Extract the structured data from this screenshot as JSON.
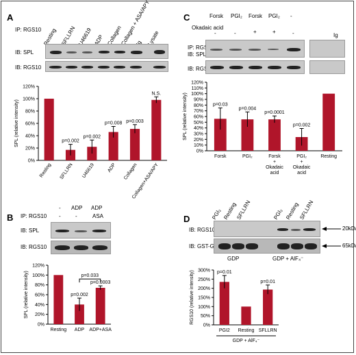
{
  "colors": {
    "bar": "#b0152a",
    "axis": "#000",
    "blot_bg": "#c9c9c9",
    "band": "#222"
  },
  "panels": {
    "A": {
      "label": "A",
      "ip": "IP: RGS10",
      "ib_top": "IB: SPL",
      "ib_bottom": "IB: RGS10",
      "lanes": [
        "Resting",
        "SFLLRN",
        "U46619",
        "ADP",
        "Collagen",
        "Collagen + ASA/APY",
        "Ig",
        "Lysate"
      ]
    },
    "B": {
      "label": "B",
      "ip": "IP: RGS10",
      "ib_top": "IB: SPL",
      "ib_bottom": "IB: RGS10",
      "row1": [
        "-",
        "ADP",
        "ADP"
      ],
      "row2": [
        "-",
        "-",
        "ASA"
      ]
    },
    "C": {
      "label": "C",
      "ip": "IP: RGS10",
      "ib_top": "IB: SPL",
      "ib_bottom": "IB: RGS10",
      "okadaic_label": "Okadaic acid",
      "row1": [
        "Forsk",
        "PGI₂",
        "Forsk",
        "PGI₂",
        "-"
      ],
      "row2": [
        "-",
        "-",
        "+",
        "+",
        "-"
      ],
      "ig": "Ig"
    },
    "D": {
      "label": "D",
      "ib_top": "IB: RGS10",
      "ib_bottom": "IB: GST-Gi2α",
      "lanes": [
        "PGI₂",
        "Resting",
        "SFLLRN",
        "PGI₂",
        "Resting",
        "SFLLRN"
      ],
      "kda_top": "20kDa",
      "kda_bottom": "65kDa",
      "gdp": "GDP",
      "gdp_alf": "GDP + AlF₄⁻"
    }
  },
  "chart_data": [
    {
      "id": "A",
      "type": "bar",
      "categories": [
        "Resting",
        "SFLLRN",
        "U46619",
        "ADP",
        "Collagen",
        "Collagen+ASA/APY"
      ],
      "values": [
        100,
        17,
        22,
        46,
        51,
        98
      ],
      "errors": [
        0,
        9,
        11,
        9,
        7,
        5
      ],
      "annotations": [
        "",
        "p=0.002",
        "p=0.002",
        "p=0.008",
        "p=0.003",
        "N.S."
      ],
      "ylabel": "SPL (relative intensity)",
      "ylim": [
        0,
        120
      ],
      "yticks": [
        "0%",
        "20%",
        "40%",
        "60%",
        "80%",
        "100%",
        "120%"
      ]
    },
    {
      "id": "B",
      "type": "bar",
      "categories": [
        "Resting",
        "ADP",
        "ADP+ASA"
      ],
      "values": [
        100,
        40,
        74
      ],
      "errors": [
        0,
        13,
        4
      ],
      "annotations": [
        "",
        "p=0.002",
        "p=0.0003"
      ],
      "bracket": "p=0.033",
      "ylabel": "SPL (relative intensity)",
      "ylim": [
        0,
        120
      ],
      "yticks": [
        "0%",
        "20%",
        "40%",
        "60%",
        "80%",
        "100%",
        "120%"
      ]
    },
    {
      "id": "C",
      "type": "bar",
      "categories": [
        "Forsk",
        "PGI₂",
        "Forsk + Okadaic acid",
        "PGI₂ + Okadaic acid",
        "Resting"
      ],
      "values": [
        56,
        55,
        55,
        24,
        100
      ],
      "errors": [
        19,
        13,
        6,
        15,
        0
      ],
      "annotations": [
        "p=0.03",
        "p=0.004",
        "p=0.0001",
        "p=0.002",
        ""
      ],
      "ylabel": "SPL (relative intensity)",
      "ylim": [
        0,
        120
      ],
      "yticks": [
        "0%",
        "10%",
        "20%",
        "30%",
        "40%",
        "50%",
        "60%",
        "70%",
        "80%",
        "90%",
        "100%",
        "110%",
        "120%"
      ]
    },
    {
      "id": "D",
      "type": "bar",
      "categories": [
        "PGI2",
        "Resting",
        "SFLLRN"
      ],
      "values": [
        235,
        100,
        193
      ],
      "errors": [
        35,
        0,
        25
      ],
      "annotations": [
        "p=0.01",
        "",
        "p=0.01"
      ],
      "group_label": "GDP + AlF₄⁻",
      "ylabel": "RGS10 (relative intensity)",
      "ylim": [
        0,
        300
      ],
      "yticks": [
        "0%",
        "50%",
        "100%",
        "150%",
        "200%",
        "250%",
        "300%"
      ]
    }
  ]
}
